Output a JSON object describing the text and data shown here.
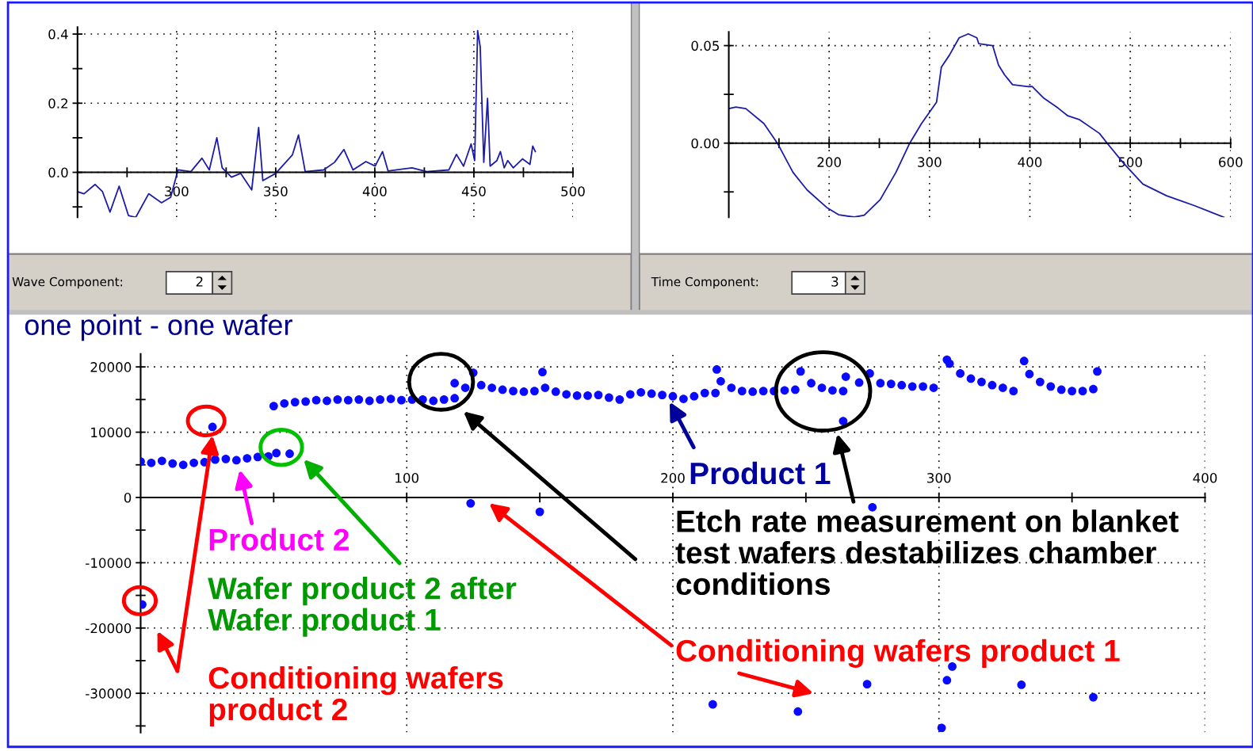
{
  "chart_data": [
    {
      "type": "line",
      "xlim": [
        250,
        500
      ],
      "ylim": [
        -0.13,
        0.42
      ],
      "xticks": [
        {
          "value": 275,
          "label": null
        },
        300,
        {
          "value": 325,
          "label": null
        },
        350,
        {
          "value": 375,
          "label": null
        },
        400,
        {
          "value": 425,
          "label": null
        },
        450,
        {
          "value": 475,
          "label": null
        },
        500
      ],
      "yticks": [
        {
          "value": -0.1,
          "label": null
        },
        {
          "value": 0,
          "label": "0.0"
        },
        {
          "value": 0.1,
          "label": null
        },
        {
          "value": 0.2,
          "label": "0.2"
        },
        {
          "value": 0.3,
          "label": null
        },
        {
          "value": 0.4,
          "label": "0.4"
        }
      ],
      "grid": true,
      "marker": "none",
      "line_style": "solid",
      "annotations": [
        "Wave Component:",
        "2"
      ],
      "series": [
        {
          "color": "#1c1ca8",
          "x": [
            250,
            253.3,
            258.9,
            262.6,
            266.4,
            271,
            275.7,
            279.4,
            285.9,
            292.4,
            297,
            300.7,
            307.2,
            312.8,
            316.5,
            320.3,
            323,
            327.7,
            332.3,
            337.9,
            341.4,
            343.5,
            350,
            358.4,
            361.5,
            364.9,
            374.2,
            379.7,
            384.4,
            389,
            395.5,
            400.2,
            403.9,
            406.7,
            418.8,
            426.2,
            437.4,
            441.2,
            444.8,
            448.6,
            450.4,
            451.9,
            453.2,
            455,
            456.9,
            458.2,
            461.6,
            463.4,
            465.3,
            467.1,
            469.9,
            474.5,
            478.3,
            479.7,
            481
          ],
          "values": [
            -0.056,
            -0.062,
            -0.035,
            -0.056,
            -0.115,
            -0.04,
            -0.125,
            -0.13,
            -0.062,
            -0.088,
            -0.072,
            0.007,
            0.002,
            0.041,
            0.007,
            0.1,
            0.013,
            -0.014,
            -0.003,
            -0.051,
            0.13,
            -0.024,
            -0.003,
            0.05,
            0.108,
            0.002,
            0.007,
            0.029,
            0.066,
            0.007,
            0.031,
            0.018,
            0.06,
            0.004,
            0.013,
            0.002,
            0.007,
            0.052,
            0.018,
            0.082,
            0.034,
            0.41,
            0.363,
            0.029,
            0.214,
            0.018,
            0.034,
            0.06,
            0.013,
            0.034,
            0.013,
            0.039,
            0.023,
            0.076,
            0.06
          ]
        }
      ]
    },
    {
      "type": "line",
      "xlim": [
        100,
        600
      ],
      "ylim": [
        -0.038,
        0.057
      ],
      "xticks": [
        {
          "value": 150,
          "label": null
        },
        200,
        {
          "value": 250,
          "label": null
        },
        300,
        {
          "value": 350,
          "label": null
        },
        400,
        {
          "value": 450,
          "label": null
        },
        500,
        {
          "value": 550,
          "label": null
        },
        600
      ],
      "yticks": [
        {
          "value": -0.025,
          "label": null
        },
        {
          "value": 0,
          "label": "0.00"
        },
        {
          "value": 0.025,
          "label": null
        },
        {
          "value": 0.05,
          "label": "0.05"
        }
      ],
      "grid": true,
      "marker": "none",
      "line_style": "solid",
      "annotations": [
        "Time Component:",
        "3"
      ],
      "series": [
        {
          "color": "#1c1ca8",
          "x": [
            100,
            107,
            117,
            135,
            148.4,
            164,
            178,
            197.6,
            209.4,
            225,
            235,
            250.8,
            266.5,
            280.3,
            292,
            307,
            311.8,
            319.7,
            329.5,
            338.6,
            347.2,
            349,
            362.9,
            368.8,
            374.8,
            382.7,
            398.4,
            402.4,
            414,
            428,
            437.8,
            449.6,
            469.3,
            477,
            492.9,
            512.6,
            536.2,
            563.8,
            593.3
          ],
          "values": [
            0.0177,
            0.0185,
            0.0177,
            0.01,
            0,
            -0.015,
            -0.024,
            -0.033,
            -0.0367,
            -0.0379,
            -0.0369,
            -0.029,
            -0.015,
            0,
            0.01,
            0.021,
            0.039,
            0.045,
            0.054,
            0.056,
            0.054,
            0.051,
            0.05,
            0.04,
            0.035,
            0.03,
            0.029,
            0.029,
            0.023,
            0.018,
            0.014,
            0.012,
            0.005,
            0,
            -0.01,
            -0.021,
            -0.027,
            -0.032,
            -0.038
          ]
        }
      ]
    },
    {
      "type": "scatter",
      "title": "one point - one wafer",
      "xlim": [
        0,
        400
      ],
      "ylim": [
        -36000,
        22000
      ],
      "xticks": [
        {
          "value": 50,
          "label": null
        },
        100,
        {
          "value": 150,
          "label": null
        },
        200,
        {
          "value": 250,
          "label": null
        },
        300,
        {
          "value": 350,
          "label": null
        },
        400
      ],
      "yticks": [
        {
          "value": -35000,
          "label": null
        },
        -30000,
        {
          "value": -25000,
          "label": null
        },
        -20000,
        {
          "value": -15000,
          "label": null
        },
        -10000,
        {
          "value": -5000,
          "label": null
        },
        0,
        {
          "value": 5000,
          "label": null
        },
        10000,
        {
          "value": 15000,
          "label": null
        },
        20000
      ],
      "grid": true,
      "marker": "circle",
      "annotations": [
        "Product 1",
        "Etch rate measurement on blanket\ntest wafers destabilizes chamber\nconditions",
        "Conditioning wafers product 1",
        "Product 2",
        "Wafer product 2 after\nWafer product 1",
        "Conditioning wafers\nproduct 2"
      ],
      "series": [
        {
          "color": "#0a0aff",
          "x": [
            0,
            4,
            8,
            12,
            16,
            20,
            24,
            28,
            32,
            36,
            40,
            44,
            48,
            51,
            56,
            27,
            0.6,
            50,
            54,
            58,
            62,
            66,
            70,
            74,
            78,
            82,
            86,
            90,
            94,
            98,
            102,
            106,
            110,
            114,
            118,
            118,
            122,
            125,
            128,
            132,
            136,
            140,
            144,
            148,
            151,
            152,
            156,
            160,
            164,
            168,
            172,
            176,
            180,
            184,
            188,
            192,
            196,
            200,
            204,
            208,
            212,
            216,
            216.5,
            218,
            222,
            226,
            230,
            234,
            238,
            242,
            246,
            248,
            252,
            256,
            260,
            264,
            264,
            265,
            270,
            274,
            278,
            282,
            286,
            290,
            294,
            298,
            303,
            304,
            308,
            312,
            316,
            320,
            324,
            328,
            332,
            334,
            338,
            342,
            346,
            350,
            354,
            358,
            359.5,
            124,
            150,
            275,
            215,
            247,
            273,
            303,
            305,
            301,
            331,
            358
          ],
          "values": [
            5500,
            5300,
            5600,
            5200,
            5000,
            5300,
            5400,
            5800,
            5900,
            5700,
            6000,
            6200,
            6300,
            6800,
            6700,
            10800,
            -16400,
            14000,
            14400,
            14600,
            14700,
            14900,
            14800,
            15000,
            14900,
            15000,
            14800,
            15000,
            15100,
            14900,
            15000,
            15000,
            14800,
            15000,
            15200,
            17500,
            16800,
            19100,
            17200,
            16800,
            16500,
            16300,
            16200,
            16300,
            19200,
            16800,
            16200,
            15800,
            15600,
            15600,
            15700,
            15300,
            15000,
            15800,
            16100,
            15900,
            15700,
            15500,
            15100,
            15500,
            16000,
            16000,
            19600,
            17800,
            16800,
            16300,
            16200,
            16300,
            16300,
            16400,
            16500,
            19300,
            17500,
            16800,
            16400,
            16300,
            11700,
            18500,
            17600,
            19000,
            17500,
            17400,
            17200,
            17000,
            17000,
            16800,
            21100,
            20500,
            19000,
            18200,
            17700,
            17200,
            16800,
            16300,
            20900,
            18900,
            17700,
            17000,
            16500,
            16300,
            16300,
            16600,
            19300,
            -900,
            -2200,
            -1500,
            -31700,
            -32800,
            -28600,
            -28000,
            -25900,
            -35300,
            -28700,
            -30600
          ]
        }
      ]
    }
  ]
}
